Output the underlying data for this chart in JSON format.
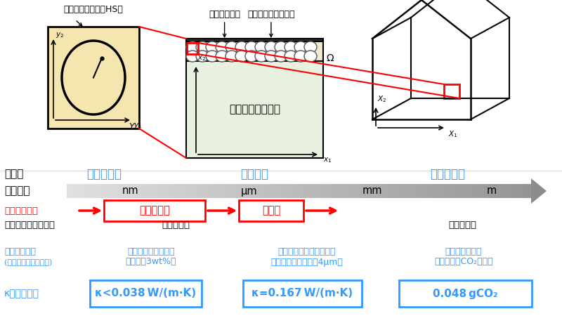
{
  "bg_color": "#ffffff",
  "blue": "#3399ff",
  "red": "#ff0000",
  "black": "#000000",
  "box_fill_micro": "#f5e6b0",
  "box_fill_mezo": "#e8f0e0",
  "box_fill_mezo_top": "#c8c8a0",
  "title_micro": "ミクロ構造",
  "title_mezo": "メゾ構造",
  "title_macro": "マクロ構造",
  "label_kozo": "構　造",
  "label_scale": "スケール",
  "label_scale_bridging": "スケール連成",
  "label_approach": "計算力学アプローチ",
  "label_fem": "有限要素法",
  "label_fvm": "有限体積法",
  "label_homog": "均質化理論",
  "label_mixing": "複合則",
  "scale_nm": "nm",
  "scale_um": "μm",
  "scale_mm": "mm",
  "scale_m": "m",
  "label_hs": "中空シリカ粒子（HS）",
  "label_topcoat": "トップコート",
  "label_primcoat": "プライマリーコート",
  "label_polycarbonate": "ポリカーボネート",
  "label_perf1": "性能評価結果",
  "label_perf1b": "(数値解析＆実証実験)",
  "label_kappa": "κ：熱伝導率",
  "label_col1_title": "中空シリカコート層",
  "label_col1_sub": "（含有率3wt%）",
  "label_col2_title": "中空シリカコート積層窓",
  "label_col2_sub": "（コーティング厘サ4μm）",
  "label_col3_title": "単位面積あたり",
  "label_col3_sub": "冬季一晩のCO₂削減量",
  "label_result1": "κ<0.038 W/(m·K)",
  "label_result2": "κ=0.167 W/(m·K)",
  "label_result3": "0.048 gCO₂"
}
